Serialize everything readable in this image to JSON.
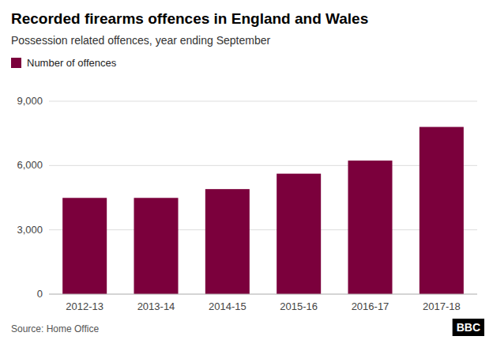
{
  "chart_data": {
    "type": "bar",
    "title": "Recorded firearms offences in England and Wales",
    "subtitle": "Possession related offences, year ending September",
    "categories": [
      "2012-13",
      "2013-14",
      "2014-15",
      "2015-16",
      "2016-17",
      "2017-18"
    ],
    "series": [
      {
        "name": "Number of offences",
        "color": "#7b003c",
        "values": [
          4490,
          4490,
          4900,
          5620,
          6230,
          7800
        ]
      }
    ],
    "ylim": [
      0,
      9000
    ],
    "yticks": [
      0,
      {
        "value": 3000,
        "label": "3,000"
      },
      {
        "value": 6000,
        "label": "6,000"
      },
      {
        "value": 9000,
        "label": "9,000"
      }
    ],
    "grid": true,
    "legend": "top-left",
    "annotations": [
      "Source: Home Office",
      "BBC"
    ]
  }
}
